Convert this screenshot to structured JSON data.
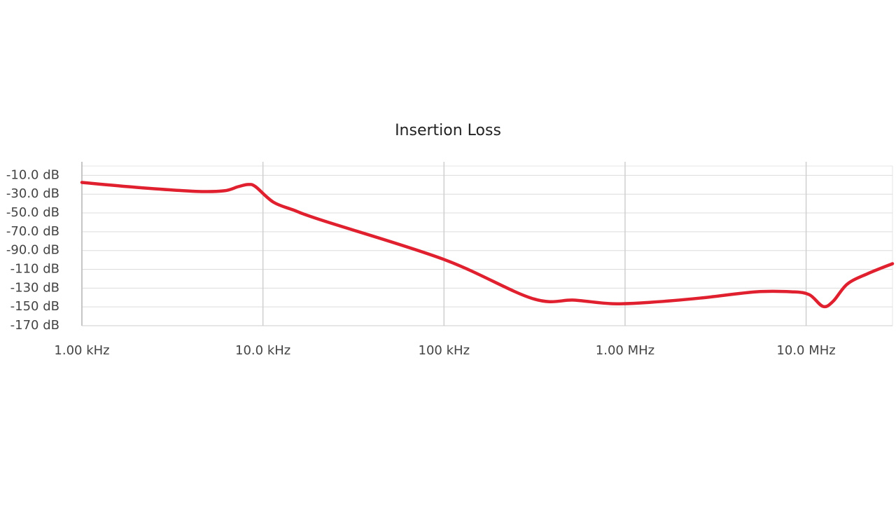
{
  "chart_data": {
    "type": "line",
    "title": "Insertion Loss",
    "x": [
      1000,
      2000,
      4270,
      6100,
      7300,
      8300,
      9100,
      11400,
      14800,
      21200,
      100000,
      307000,
      524000,
      856000,
      1400000,
      2600000,
      5300000,
      8300000,
      10400000,
      12400000,
      14100000,
      16900000,
      22000000,
      30000000
    ],
    "series": [
      {
        "name": "Insertion Loss",
        "color": "#e0202e",
        "values": [
          -17.5,
          -22.7,
          -27,
          -26.4,
          -22,
          -19.7,
          -22,
          -38.4,
          -47,
          -57.8,
          -99.5,
          -141,
          -142.8,
          -146.6,
          -145,
          -140.6,
          -133.9,
          -133.9,
          -136.9,
          -149.5,
          -144,
          -125.6,
          -114.4,
          -104
        ]
      }
    ],
    "xscale": "log",
    "xlim": [
      1000,
      30000000
    ],
    "xticks": [
      {
        "value": 1000,
        "label": "1.00 kHz"
      },
      {
        "value": 10000,
        "label": "10.0 kHz"
      },
      {
        "value": 100000,
        "label": "100 kHz"
      },
      {
        "value": 1000000,
        "label": "1.00 MHz"
      },
      {
        "value": 10000000,
        "label": "10.0 MHz"
      }
    ],
    "ylim": [
      -170,
      0
    ],
    "yticks": [
      {
        "value": -10,
        "label": "-10.0 dB"
      },
      {
        "value": -30,
        "label": "-30.0 dB"
      },
      {
        "value": -50,
        "label": "-50.0 dB"
      },
      {
        "value": -70,
        "label": "-70.0 dB"
      },
      {
        "value": -90,
        "label": "-90.0 dB"
      },
      {
        "value": -110,
        "label": "-110 dB"
      },
      {
        "value": -130,
        "label": "-130 dB"
      },
      {
        "value": -150,
        "label": "-150 dB"
      },
      {
        "value": -170,
        "label": "-170 dB"
      }
    ],
    "grid": true
  }
}
